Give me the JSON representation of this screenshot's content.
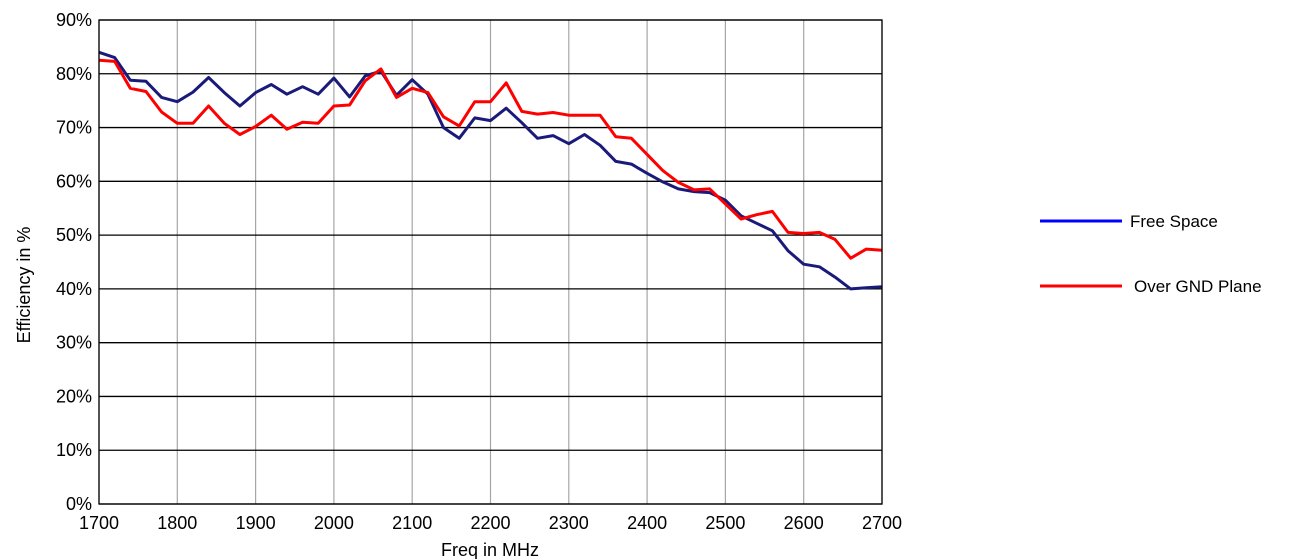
{
  "colors": {
    "free_space": "#1a1a7a",
    "free_space_legend": "#0000ff",
    "over_gnd_plane": "#ff0000",
    "grid": "#a6a6a6",
    "frame": "#000000"
  },
  "chart_data": {
    "type": "line",
    "title": "",
    "xlabel": "Freq in MHz",
    "ylabel": "Efficiency  in %",
    "xlim": [
      1700,
      2700
    ],
    "ylim": [
      0,
      90
    ],
    "x_ticks": [
      1700,
      1800,
      1900,
      2000,
      2100,
      2200,
      2300,
      2400,
      2500,
      2600,
      2700
    ],
    "x_tick_labels": [
      "1700",
      "1800",
      "1900",
      "2000",
      "2100",
      "2200",
      "2300",
      "2400",
      "2500",
      "2600",
      "2700"
    ],
    "y_ticks": [
      0,
      10,
      20,
      30,
      40,
      50,
      60,
      70,
      80,
      90
    ],
    "y_tick_labels": [
      "0%",
      "10%",
      "20%",
      "30%",
      "40%",
      "50%",
      "60%",
      "70%",
      "80%",
      "90%"
    ],
    "grid": true,
    "legend_position": "right",
    "x": [
      1700,
      1720,
      1740,
      1760,
      1780,
      1800,
      1820,
      1840,
      1860,
      1880,
      1900,
      1920,
      1940,
      1960,
      1980,
      2000,
      2020,
      2040,
      2060,
      2080,
      2100,
      2120,
      2140,
      2160,
      2180,
      2200,
      2220,
      2240,
      2260,
      2280,
      2300,
      2320,
      2340,
      2360,
      2380,
      2400,
      2420,
      2440,
      2460,
      2480,
      2500,
      2520,
      2540,
      2560,
      2580,
      2600,
      2620,
      2640,
      2660,
      2680,
      2700
    ],
    "series": [
      {
        "name": "Free Space",
        "color_key": "free_space",
        "legend_color_key": "free_space_legend",
        "values": [
          84.0,
          83.0,
          78.8,
          78.6,
          75.6,
          74.8,
          76.6,
          79.3,
          76.5,
          74.0,
          76.5,
          78.0,
          76.2,
          77.6,
          76.2,
          79.2,
          75.7,
          79.6,
          80.5,
          76.0,
          78.9,
          76.2,
          70.0,
          68.0,
          71.8,
          71.3,
          73.6,
          70.9,
          68.0,
          68.5,
          67.0,
          68.7,
          66.7,
          63.7,
          63.2,
          61.5,
          59.9,
          58.6,
          58.1,
          57.9,
          56.5,
          53.6,
          52.2,
          50.8,
          47.1,
          44.6,
          44.1,
          42.2,
          40.0,
          40.2,
          40.4
        ]
      },
      {
        "name": "Over GND Plane",
        "color_key": "over_gnd_plane",
        "legend_color_key": "over_gnd_plane",
        "values": [
          82.5,
          82.3,
          77.3,
          76.7,
          72.9,
          70.8,
          70.8,
          74.0,
          70.8,
          68.7,
          70.2,
          72.3,
          69.7,
          71.0,
          70.8,
          74.0,
          74.2,
          78.7,
          80.9,
          75.6,
          77.3,
          76.5,
          72.0,
          70.3,
          74.8,
          74.8,
          78.3,
          73.0,
          72.5,
          72.8,
          72.3,
          72.3,
          72.3,
          68.3,
          68.0,
          65.0,
          62.0,
          59.8,
          58.4,
          58.6,
          55.8,
          53.0,
          53.8,
          54.4,
          50.5,
          50.3,
          50.5,
          49.2,
          45.7,
          47.4,
          47.2
        ]
      }
    ]
  }
}
